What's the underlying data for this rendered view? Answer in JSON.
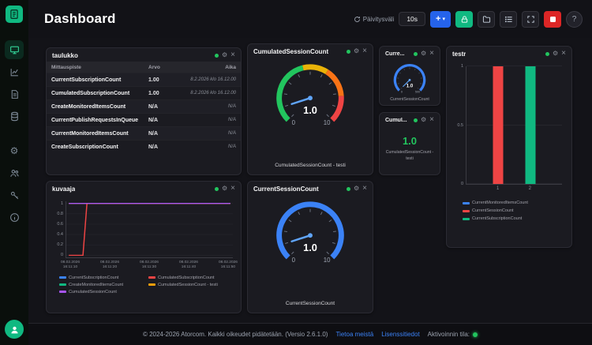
{
  "colors": {
    "accent_green": "#10b981",
    "status_green": "#22c55e",
    "primary_blue": "#2563eb",
    "danger_red": "#dc2626",
    "series_blue": "#3b82f6",
    "series_red": "#ef4444",
    "series_green": "#10b981",
    "series_orange": "#f59e0b",
    "series_purple": "#a855f7"
  },
  "icons": {
    "gear": "⚙",
    "close": "×",
    "plus": "+",
    "chevron_down": "▾",
    "help": "?"
  },
  "header": {
    "title": "Dashboard",
    "refresh_label": "Päivitysväli",
    "refresh_value": "10s"
  },
  "panels": {
    "table": {
      "title": "taulukko",
      "columns": [
        "Mittauspiste",
        "Arvo",
        "Aika"
      ],
      "rows": [
        {
          "name": "CurrentSubscriptionCount",
          "value": "1.00",
          "time": "8.2.2026 klo 16.12.00"
        },
        {
          "name": "CumulatedSubscriptionCount",
          "value": "1.00",
          "time": "8.2.2026 klo 16.12.00"
        },
        {
          "name": "CreateMonitoredItemsCount",
          "value": "N/A",
          "time": "N/A"
        },
        {
          "name": "CurrentPublishRequestsInQueue",
          "value": "N/A",
          "time": "N/A"
        },
        {
          "name": "CurrentMonitoredItemsCount",
          "value": "N/A",
          "time": "N/A"
        },
        {
          "name": "CreateSubscriptionCount",
          "value": "N/A",
          "time": "N/A"
        }
      ]
    },
    "gauge_cumulated": {
      "title": "CumulatedSessionCount",
      "label": "CumulatedSessionCount - testi",
      "value": "1.0",
      "min": "0",
      "max": "10",
      "value_num": 1,
      "min_num": 0,
      "max_num": 10,
      "needle_color": "#60a5fa",
      "segments": [
        [
          0,
          0.45,
          "#22c55e"
        ],
        [
          0.45,
          0.62,
          "#eab308"
        ],
        [
          0.62,
          0.82,
          "#f97316"
        ],
        [
          0.82,
          1,
          "#ef4444"
        ]
      ]
    },
    "gauge_small": {
      "title": "Curre...",
      "label": "CurrentSessionCount",
      "value": "1.0",
      "min": "0",
      "max": "500",
      "value_num": 1,
      "min_num": 0,
      "max_num": 500,
      "needle_color": "#60a5fa",
      "segments": [
        [
          0,
          1,
          "#3b82f6"
        ]
      ]
    },
    "stat": {
      "title": "Cumul...",
      "value": "1.0",
      "label": "CumulatedSessionCount - testi"
    },
    "bars": {
      "title": "testr",
      "type": "bar",
      "ymax": 1,
      "yticks": [
        0,
        0.5,
        1
      ],
      "xticks": [
        "1",
        "2"
      ],
      "series": [
        {
          "name": "CurrentMonitoredItemsCount",
          "color": "#3b82f6",
          "value": null
        },
        {
          "name": "CurrentSessionCount",
          "color": "#ef4444",
          "value": 1
        },
        {
          "name": "CurrentSubscriptionCount",
          "color": "#10b981",
          "value": 1
        }
      ]
    },
    "line": {
      "title": "kuvaaja",
      "type": "line",
      "ymax": 1,
      "yticks": [
        0,
        0.2,
        0.4,
        0.6,
        0.8,
        1
      ],
      "xticks": [
        "08.02.2026|16:11:10",
        "08.02.2026|16:11:20",
        "08.02.2026|16:11:30",
        "08.02.2026|16:11:40",
        "08.02.2026|16:11:50"
      ],
      "series": [
        {
          "name": "CurrentSubscriptionCount",
          "color": "#3b82f6",
          "points": [
            [
              0,
              1
            ],
            [
              4,
              1
            ]
          ]
        },
        {
          "name": "CumulatedSubscriptionCount",
          "color": "#ef4444",
          "points": [
            [
              0,
              0
            ],
            [
              0.35,
              0
            ],
            [
              0.45,
              1
            ],
            [
              4,
              1
            ]
          ]
        },
        {
          "name": "CreateMonitoredItemsCount",
          "color": "#10b981",
          "points": []
        },
        {
          "name": "CumulatedSessionCount - testi",
          "color": "#f59e0b",
          "points": [
            [
              0,
              1
            ],
            [
              4,
              1
            ]
          ]
        },
        {
          "name": "CumulatedSessionCount",
          "color": "#a855f7",
          "points": [
            [
              0,
              1
            ],
            [
              4,
              1
            ]
          ]
        }
      ]
    },
    "gauge_current": {
      "title": "CurrentSessionCount",
      "label": "CurrentSessionCount",
      "value": "1.0",
      "min": "0",
      "max": "10",
      "value_num": 1,
      "min_num": 0,
      "max_num": 10,
      "needle_color": "#60a5fa",
      "segments": [
        [
          0,
          1,
          "#3b82f6"
        ]
      ]
    }
  },
  "footer": {
    "copyright": "© 2024-2026 Atorcom. Kaikki oikeudet pidätetään. (Versio 2.6.1.0)",
    "link_about": "Tietoa meistä",
    "link_license": "Lisenssitiedot",
    "status_label": "Aktivoinnin tila:"
  }
}
